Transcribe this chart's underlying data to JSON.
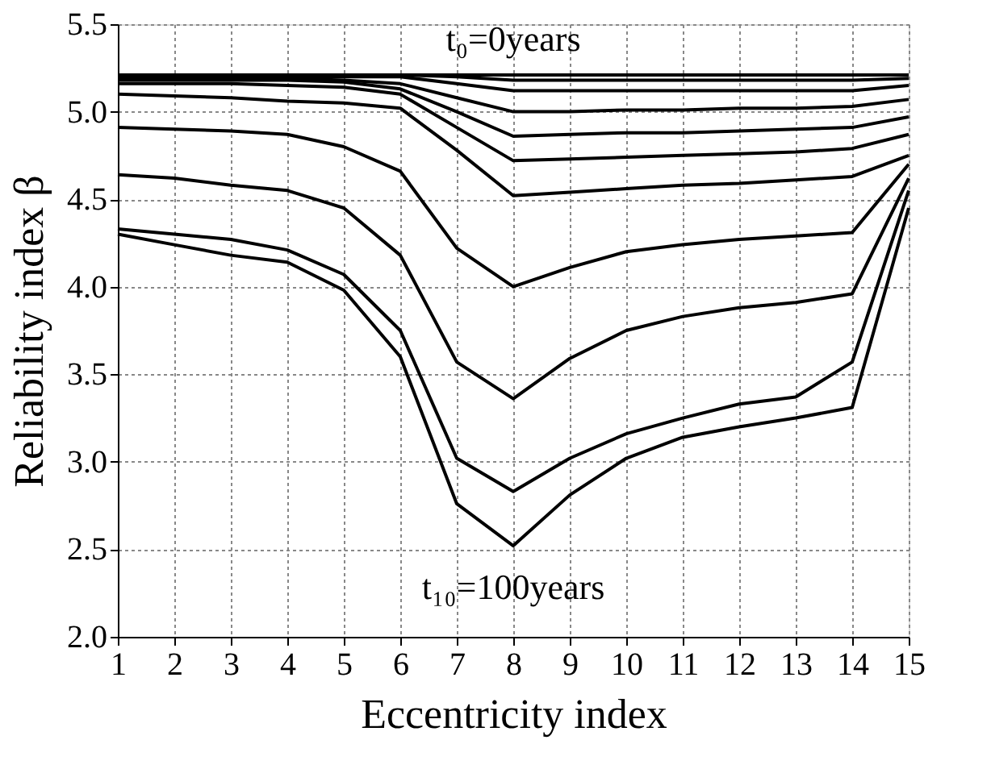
{
  "chart_data": {
    "type": "line",
    "xlabel": "Eccentricity index",
    "ylabel": "Reliability index β",
    "x": [
      1,
      2,
      3,
      4,
      5,
      6,
      7,
      8,
      9,
      10,
      11,
      12,
      13,
      14,
      15
    ],
    "series": [
      {
        "color": "#000000",
        "values": [
          5.21,
          5.21,
          5.21,
          5.21,
          5.21,
          5.21,
          5.21,
          5.21,
          5.21,
          5.21,
          5.21,
          5.21,
          5.21,
          5.21,
          5.21
        ]
      },
      {
        "color": "#000000",
        "values": [
          5.21,
          5.21,
          5.21,
          5.21,
          5.21,
          5.21,
          5.2,
          5.18,
          5.18,
          5.18,
          5.18,
          5.18,
          5.18,
          5.18,
          5.19
        ]
      },
      {
        "color": "#000000",
        "values": [
          5.2,
          5.2,
          5.2,
          5.2,
          5.2,
          5.2,
          5.16,
          5.12,
          5.12,
          5.12,
          5.12,
          5.12,
          5.12,
          5.12,
          5.15
        ]
      },
      {
        "color": "#000000",
        "values": [
          5.19,
          5.19,
          5.19,
          5.19,
          5.18,
          5.16,
          5.08,
          5.0,
          5.0,
          5.01,
          5.01,
          5.02,
          5.02,
          5.03,
          5.07
        ]
      },
      {
        "color": "#000000",
        "values": [
          5.18,
          5.18,
          5.18,
          5.18,
          5.17,
          5.13,
          5.0,
          4.86,
          4.87,
          4.88,
          4.88,
          4.89,
          4.9,
          4.91,
          4.97
        ]
      },
      {
        "color": "#000000",
        "values": [
          5.16,
          5.16,
          5.16,
          5.15,
          5.14,
          5.1,
          4.91,
          4.72,
          4.73,
          4.74,
          4.75,
          4.76,
          4.77,
          4.79,
          4.87
        ]
      },
      {
        "color": "#000000",
        "values": [
          5.1,
          5.09,
          5.08,
          5.06,
          5.05,
          5.02,
          4.78,
          4.52,
          4.54,
          4.56,
          4.58,
          4.59,
          4.61,
          4.63,
          4.75
        ]
      },
      {
        "color": "#000000",
        "values": [
          4.91,
          4.9,
          4.89,
          4.87,
          4.8,
          4.66,
          4.22,
          4.0,
          4.11,
          4.2,
          4.24,
          4.27,
          4.29,
          4.31,
          4.7
        ]
      },
      {
        "color": "#000000",
        "values": [
          4.64,
          4.62,
          4.58,
          4.55,
          4.45,
          4.18,
          3.57,
          3.36,
          3.59,
          3.75,
          3.83,
          3.88,
          3.91,
          3.96,
          4.62
        ]
      },
      {
        "color": "#000000",
        "values": [
          4.33,
          4.3,
          4.27,
          4.21,
          4.07,
          3.75,
          3.02,
          2.83,
          3.02,
          3.16,
          3.25,
          3.33,
          3.37,
          3.57,
          4.55
        ]
      },
      {
        "color": "#000000",
        "values": [
          4.3,
          4.24,
          4.18,
          4.14,
          3.98,
          3.6,
          2.76,
          2.52,
          2.81,
          3.02,
          3.14,
          3.2,
          3.25,
          3.31,
          4.45
        ]
      }
    ],
    "xlim": [
      1,
      15
    ],
    "xticks": [
      1,
      2,
      3,
      4,
      5,
      6,
      7,
      8,
      9,
      10,
      11,
      12,
      13,
      14,
      15
    ],
    "ylim": [
      2.0,
      5.5
    ],
    "yticks": [
      {
        "value": 2.0,
        "label": "2.0"
      },
      {
        "value": 2.5,
        "label": "2.5"
      },
      {
        "value": 3.0,
        "label": "3.0"
      },
      {
        "value": 3.5,
        "label": "3.5"
      },
      {
        "value": 4.0,
        "label": "4.0"
      },
      {
        "value": 4.5,
        "label": "4.5"
      },
      {
        "value": 5.0,
        "label": "5.0"
      },
      {
        "value": 5.5,
        "label": "5.5"
      }
    ],
    "grid": true,
    "annotations": [
      {
        "text": "t₀=0years",
        "x": 8,
        "y": 5.21
      },
      {
        "text": "t₁₀=100years",
        "x": 8,
        "y": 2.52
      }
    ]
  }
}
